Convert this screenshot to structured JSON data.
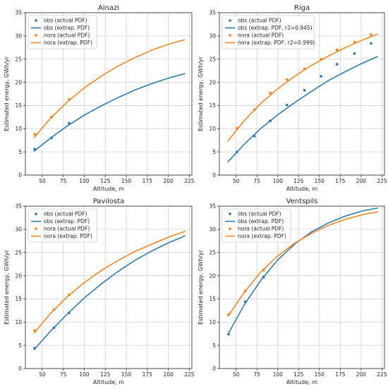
{
  "colors": {
    "obs": "#1f77b4",
    "nora": "#ff7f0e",
    "grid": "#d0d0d0",
    "axis": "#262626"
  },
  "chart_data": [
    {
      "type": "line",
      "title": "Ainazi",
      "xlabel": "Altitude, m",
      "ylabel": "Estimated energy, GWh/yr",
      "xlim": [
        30,
        228
      ],
      "ylim": [
        0,
        35
      ],
      "xticks": [
        50,
        75,
        100,
        125,
        150,
        175,
        200,
        225
      ],
      "yticks": [
        0,
        5,
        10,
        15,
        20,
        25,
        30,
        35
      ],
      "grid": true,
      "legend": "top-left",
      "series": [
        {
          "name": "obs (actual PDF)",
          "style": "points",
          "color": "obs",
          "x": [
            41,
            61,
            82
          ],
          "y": [
            5.6,
            8.0,
            11.2
          ]
        },
        {
          "name": "obs (extrap. PDF)",
          "style": "curve",
          "color": "obs",
          "x": [
            40,
            60,
            80,
            100,
            120,
            140,
            160,
            180,
            200,
            220
          ],
          "y": [
            5.1,
            8.0,
            10.6,
            12.9,
            14.9,
            16.7,
            18.3,
            19.7,
            20.9,
            21.9
          ]
        },
        {
          "name": "nora (actual PDF)",
          "style": "points",
          "color": "nora",
          "x": [
            41,
            61,
            82
          ],
          "y": [
            8.8,
            12.5,
            16.3
          ]
        },
        {
          "name": "nora (extrap. PDF)",
          "style": "curve",
          "color": "nora",
          "x": [
            40,
            60,
            80,
            100,
            120,
            140,
            160,
            180,
            200,
            220
          ],
          "y": [
            8.0,
            12.3,
            15.8,
            18.8,
            21.3,
            23.5,
            25.3,
            26.9,
            28.2,
            29.2
          ]
        }
      ]
    },
    {
      "type": "line",
      "title": "Riga",
      "xlabel": "Altitude, m",
      "ylabel": "Estimated energy, GWh/yr",
      "xlim": [
        30,
        228
      ],
      "ylim": [
        0,
        35
      ],
      "xticks": [
        50,
        75,
        100,
        125,
        150,
        175,
        200,
        225
      ],
      "yticks": [
        0,
        5,
        10,
        15,
        20,
        25,
        30,
        35
      ],
      "grid": true,
      "legend": "top-left",
      "series": [
        {
          "name": "obs (actual PDF)",
          "style": "points",
          "color": "obs",
          "x": [
            51,
            72,
            91,
            111,
            132,
            152,
            171,
            192,
            212
          ],
          "y": [
            5.0,
            8.4,
            11.7,
            15.1,
            18.3,
            21.3,
            23.9,
            26.2,
            28.4
          ]
        },
        {
          "name": "obs (extrap. PDF, r2=0.945)",
          "style": "curve",
          "color": "obs",
          "x": [
            40,
            60,
            80,
            100,
            120,
            140,
            160,
            180,
            200,
            220
          ],
          "y": [
            2.8,
            6.7,
            10.1,
            13.0,
            15.6,
            18.0,
            20.3,
            22.2,
            24.0,
            25.6
          ]
        },
        {
          "name": "nora (actual PDF)",
          "style": "points",
          "color": "nora",
          "x": [
            51,
            72,
            91,
            111,
            132,
            152,
            171,
            192,
            212
          ],
          "y": [
            10.1,
            14.1,
            17.7,
            20.6,
            22.9,
            25.0,
            27.0,
            28.7,
            30.3
          ]
        },
        {
          "name": "nora (extrap. PDF, r2=0.999)",
          "style": "curve",
          "color": "nora",
          "x": [
            40,
            60,
            80,
            100,
            120,
            140,
            160,
            180,
            200,
            220
          ],
          "y": [
            7.3,
            11.8,
            15.5,
            18.6,
            21.3,
            23.6,
            25.6,
            27.4,
            29.0,
            30.4
          ]
        }
      ]
    },
    {
      "type": "line",
      "title": "Pavilosta",
      "xlabel": "Altitude, m",
      "ylabel": "Estimated energy, GWh/yr",
      "xlim": [
        30,
        228
      ],
      "ylim": [
        0,
        35
      ],
      "xticks": [
        50,
        75,
        100,
        125,
        150,
        175,
        200,
        225
      ],
      "yticks": [
        0,
        5,
        10,
        15,
        20,
        25,
        30,
        35
      ],
      "grid": true,
      "legend": "top-left",
      "series": [
        {
          "name": "obs (actual PDF)",
          "style": "points",
          "color": "obs",
          "x": [
            41,
            64,
            82
          ],
          "y": [
            4.4,
            8.8,
            12.0
          ]
        },
        {
          "name": "obs (extrap. PDF)",
          "style": "curve",
          "color": "obs",
          "x": [
            40,
            60,
            80,
            100,
            120,
            140,
            160,
            180,
            200,
            220
          ],
          "y": [
            4.0,
            8.1,
            11.8,
            15.2,
            18.2,
            20.9,
            23.3,
            25.3,
            27.1,
            28.6
          ]
        },
        {
          "name": "nora (actual PDF)",
          "style": "points",
          "color": "nora",
          "x": [
            41,
            64,
            82
          ],
          "y": [
            8.2,
            12.7,
            15.9
          ]
        },
        {
          "name": "nora (extrap. PDF)",
          "style": "curve",
          "color": "nora",
          "x": [
            40,
            60,
            80,
            100,
            120,
            140,
            160,
            180,
            200,
            220
          ],
          "y": [
            7.6,
            11.9,
            15.5,
            18.5,
            21.1,
            23.3,
            25.2,
            26.8,
            28.3,
            29.6
          ]
        }
      ]
    },
    {
      "type": "line",
      "title": "Ventspils",
      "xlabel": "Altitude, m",
      "ylabel": "Estimated energy, GWh/yr",
      "xlim": [
        30,
        228
      ],
      "ylim": [
        0,
        35
      ],
      "xticks": [
        50,
        75,
        100,
        125,
        150,
        175,
        200,
        225
      ],
      "yticks": [
        0,
        5,
        10,
        15,
        20,
        25,
        30,
        35
      ],
      "grid": true,
      "legend": "top-left",
      "series": [
        {
          "name": "obs (actual PDF)",
          "style": "points",
          "color": "obs",
          "x": [
            41,
            61,
            83
          ],
          "y": [
            7.4,
            14.4,
            19.7
          ]
        },
        {
          "name": "obs (extrap. PDF)",
          "style": "curve",
          "color": "obs",
          "x": [
            40,
            60,
            80,
            100,
            120,
            140,
            160,
            180,
            200,
            220
          ],
          "y": [
            7.3,
            13.8,
            19.1,
            23.4,
            26.8,
            29.4,
            31.3,
            32.8,
            33.9,
            34.6
          ]
        },
        {
          "name": "nora (actual PDF)",
          "style": "points",
          "color": "nora",
          "x": [
            41,
            61,
            83
          ],
          "y": [
            11.7,
            16.7,
            21.2
          ]
        },
        {
          "name": "nora (extrap. PDF)",
          "style": "curve",
          "color": "nora",
          "x": [
            40,
            60,
            80,
            100,
            120,
            140,
            160,
            180,
            200,
            220
          ],
          "y": [
            11.2,
            16.5,
            20.9,
            24.3,
            27.0,
            29.1,
            30.8,
            32.1,
            33.1,
            33.8
          ]
        }
      ]
    }
  ]
}
